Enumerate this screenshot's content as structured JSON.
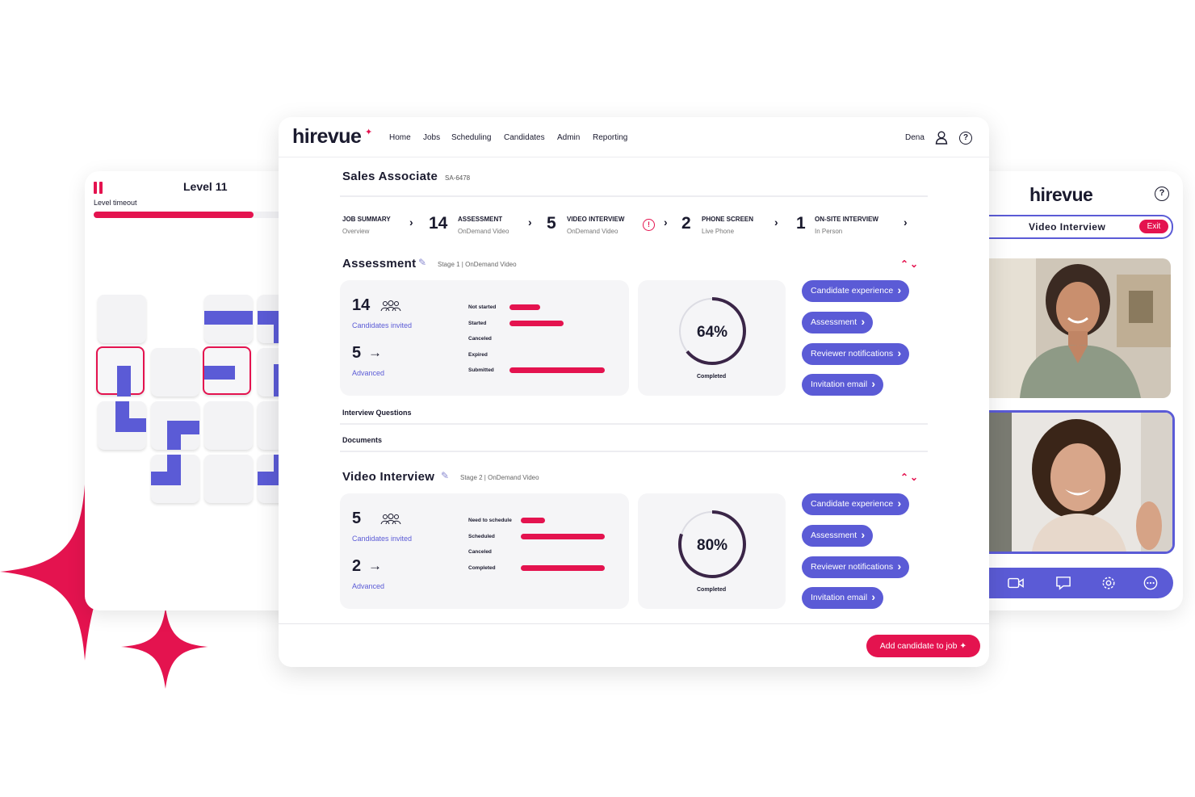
{
  "colors": {
    "brand_red": "#e4134f",
    "brand_purple": "#5b5bd6",
    "card_bg": "#f5f5f7"
  },
  "game": {
    "level": "Level 11",
    "timeout_label": "Level timeout",
    "timeout_progress": 0.66
  },
  "video_panel": {
    "logo": "hirevue",
    "help_icon": "?",
    "title": "Video Interview",
    "exit_label": "Exit",
    "toolbar_icons": [
      "video-camera-icon",
      "chat-icon",
      "settings-icon",
      "more-icon"
    ]
  },
  "nav": {
    "logo": "hirevue",
    "items": [
      "Home",
      "Jobs",
      "Scheduling",
      "Candidates",
      "Admin",
      "Reporting"
    ],
    "user": "Dena",
    "help": "?"
  },
  "job": {
    "title": "Sales Associate",
    "code": "SA-6478"
  },
  "pipeline": [
    {
      "count": "",
      "name": "JOB SUMMARY",
      "sub": "Overview"
    },
    {
      "count": "14",
      "name": "ASSESSMENT",
      "sub": "OnDemand Video"
    },
    {
      "count": "5",
      "name": "VIDEO INTERVIEW",
      "sub": "OnDemand Video",
      "warning": "!"
    },
    {
      "count": "2",
      "name": "PHONE SCREEN",
      "sub": "Live Phone"
    },
    {
      "count": "1",
      "name": "ON-SITE INTERVIEW",
      "sub": "In Person"
    }
  ],
  "sections": [
    {
      "title": "Assessment",
      "subtitle": "Stage 1 | OnDemand Video",
      "invited": "14",
      "invited_label": "Candidates invited",
      "advanced": "5",
      "advanced_label": "Advanced",
      "bars": [
        {
          "label": "Not started",
          "value": 0.32
        },
        {
          "label": "Started",
          "value": 0.57
        },
        {
          "label": "Canceled",
          "value": 0
        },
        {
          "label": "Expired",
          "value": 0
        },
        {
          "label": "Submitted",
          "value": 1.0
        }
      ],
      "percent": "64%",
      "percent_value": 0.64,
      "percent_label": "Completed",
      "actions": [
        "Candidate experience",
        "Assessment",
        "Reviewer notifications",
        "Invitation email"
      ]
    },
    {
      "title": "Video Interview",
      "subtitle": "Stage 2 | OnDemand Video",
      "invited": "5",
      "invited_label": "Candidates invited",
      "advanced": "2",
      "advanced_label": "Advanced",
      "bars": [
        {
          "label": "Need to schedule",
          "value": 0.29
        },
        {
          "label": "Scheduled",
          "value": 1.0
        },
        {
          "label": "Canceled",
          "value": 0
        },
        {
          "label": "Completed",
          "value": 1.0
        }
      ],
      "percent": "80%",
      "percent_value": 0.8,
      "percent_label": "Completed",
      "actions": [
        "Candidate experience",
        "Assessment",
        "Reviewer notifications",
        "Invitation email"
      ]
    }
  ],
  "rows": [
    "Interview Questions",
    "Documents"
  ],
  "add_candidate": "Add candidate to job"
}
